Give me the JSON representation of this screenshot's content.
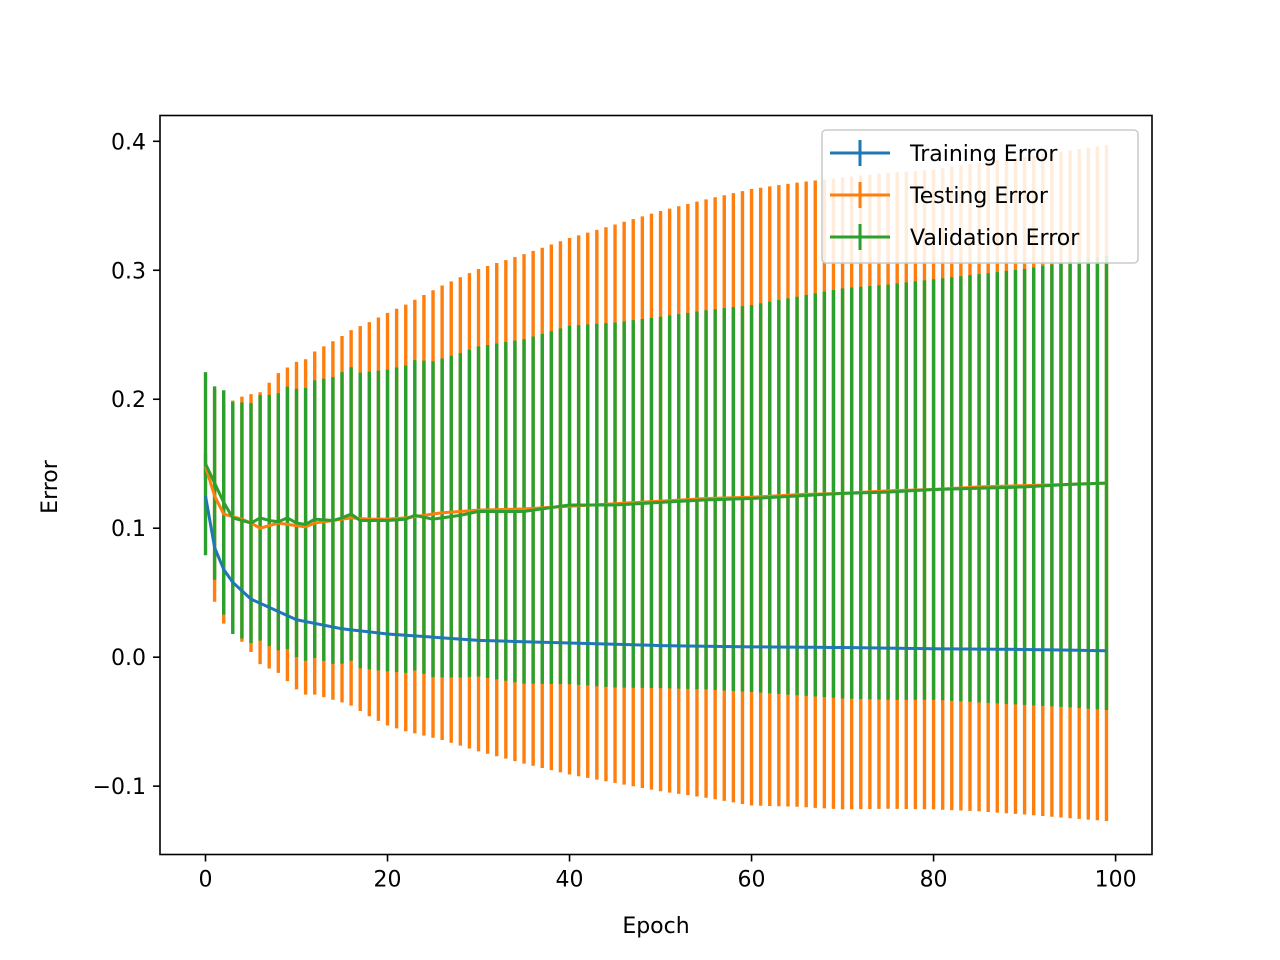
{
  "chart_data": {
    "type": "line",
    "title": "",
    "xlabel": "Epoch",
    "ylabel": "Error",
    "xlim": [
      -5,
      104
    ],
    "ylim": [
      -0.153,
      0.42
    ],
    "xticks": [
      0,
      20,
      40,
      60,
      80,
      100
    ],
    "xtick_labels": [
      "0",
      "20",
      "40",
      "60",
      "80",
      "100"
    ],
    "yticks": [
      -0.1,
      0.0,
      0.1,
      0.2,
      0.3,
      0.4
    ],
    "ytick_labels": [
      "−0.1",
      "0.0",
      "0.1",
      "0.2",
      "0.3",
      "0.4"
    ],
    "grid": false,
    "legend_position": "top-right",
    "error_bars": "vertical, every epoch",
    "epochs": {
      "start": 0,
      "end": 99,
      "step": 1
    },
    "series": [
      {
        "name": "Training Error",
        "color": "#1f77b4",
        "values_at": {
          "0": 0.125,
          "1": 0.085,
          "2": 0.068,
          "3": 0.058,
          "5": 0.045,
          "10": 0.029,
          "15": 0.022,
          "20": 0.018,
          "30": 0.013,
          "40": 0.011,
          "50": 0.009,
          "60": 0.008,
          "70": 0.0075,
          "80": 0.0065,
          "90": 0.006,
          "99": 0.005
        },
        "error_at": {
          "0": 0.0
        }
      },
      {
        "name": "Testing Error",
        "color": "#ff7f0e",
        "values_at": {
          "0": 0.148,
          "1": 0.125,
          "2": 0.111,
          "3": 0.109,
          "4": 0.107,
          "5": 0.104,
          "6": 0.1,
          "7": 0.102,
          "8": 0.104,
          "9": 0.103,
          "10": 0.102,
          "11": 0.101,
          "12": 0.104,
          "14": 0.106,
          "16": 0.108,
          "18": 0.107,
          "20": 0.107,
          "22": 0.108,
          "24": 0.11,
          "26": 0.112,
          "28": 0.113,
          "30": 0.114,
          "35": 0.115,
          "40": 0.117,
          "45": 0.119,
          "50": 0.121,
          "55": 0.123,
          "60": 0.124,
          "65": 0.126,
          "70": 0.127,
          "75": 0.129,
          "80": 0.13,
          "85": 0.132,
          "90": 0.133,
          "95": 0.134,
          "99": 0.135
        },
        "error_at": {
          "0": 0.01,
          "1": 0.082,
          "2": 0.085,
          "5": 0.1,
          "10": 0.127,
          "15": 0.142,
          "20": 0.16,
          "30": 0.187,
          "40": 0.208,
          "50": 0.225,
          "60": 0.239,
          "70": 0.245,
          "80": 0.248,
          "90": 0.255,
          "99": 0.262
        }
      },
      {
        "name": "Validation Error",
        "color": "#2ca02c",
        "values_at": {
          "0": 0.15,
          "1": 0.135,
          "2": 0.12,
          "3": 0.108,
          "4": 0.106,
          "5": 0.104,
          "6": 0.108,
          "7": 0.106,
          "8": 0.105,
          "9": 0.108,
          "10": 0.104,
          "11": 0.103,
          "12": 0.107,
          "14": 0.106,
          "15": 0.108,
          "16": 0.111,
          "17": 0.106,
          "20": 0.106,
          "22": 0.107,
          "23": 0.11,
          "25": 0.107,
          "28": 0.11,
          "30": 0.113,
          "35": 0.113,
          "40": 0.118,
          "45": 0.118,
          "50": 0.12,
          "55": 0.122,
          "60": 0.123,
          "65": 0.125,
          "70": 0.127,
          "75": 0.128,
          "80": 0.13,
          "85": 0.131,
          "90": 0.132,
          "95": 0.134,
          "99": 0.135
        },
        "error_at": {
          "0": 0.071,
          "1": 0.075,
          "2": 0.087,
          "3": 0.09,
          "5": 0.093,
          "10": 0.104,
          "15": 0.113,
          "20": 0.117,
          "30": 0.128,
          "40": 0.139,
          "50": 0.144,
          "60": 0.15,
          "70": 0.159,
          "80": 0.163,
          "90": 0.169,
          "99": 0.176
        }
      }
    ]
  }
}
